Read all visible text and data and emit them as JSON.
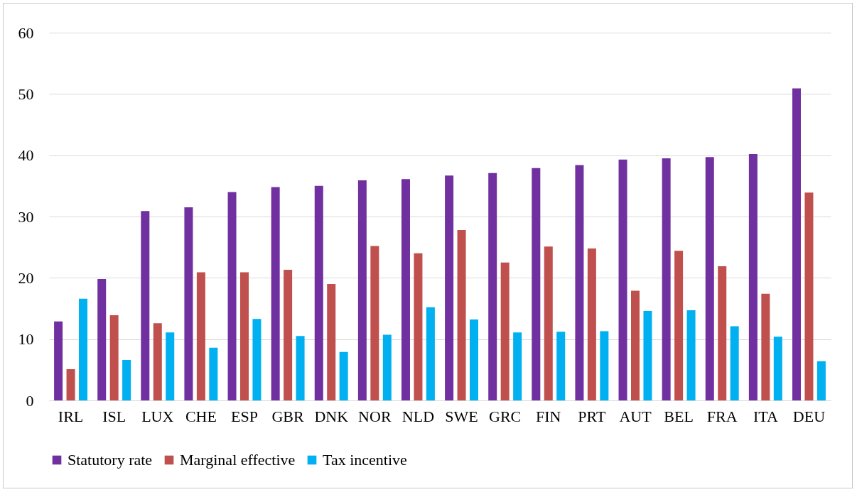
{
  "chart_data": {
    "type": "bar",
    "categories": [
      "IRL",
      "ISL",
      "LUX",
      "CHE",
      "ESP",
      "GBR",
      "DNK",
      "NOR",
      "NLD",
      "SWE",
      "GRC",
      "FIN",
      "PRT",
      "AUT",
      "BEL",
      "FRA",
      "ITA",
      "DEU"
    ],
    "series": [
      {
        "name": "Statutory rate",
        "color": "#7030a0",
        "values": [
          12.9,
          19.8,
          30.9,
          31.5,
          34.0,
          34.8,
          35.0,
          35.9,
          36.1,
          36.7,
          37.1,
          37.9,
          38.4,
          39.3,
          39.5,
          39.7,
          40.2,
          50.9
        ]
      },
      {
        "name": "Marginal effective",
        "color": "#c0504d",
        "values": [
          5.1,
          13.9,
          12.6,
          20.9,
          20.9,
          21.3,
          19.0,
          25.2,
          24.0,
          27.8,
          22.5,
          25.1,
          24.8,
          17.9,
          24.4,
          21.9,
          17.4,
          33.9
        ]
      },
      {
        "name": "Tax incentive",
        "color": "#00b0f0",
        "values": [
          16.6,
          6.6,
          11.1,
          8.6,
          13.3,
          10.5,
          7.9,
          10.7,
          15.2,
          13.2,
          11.1,
          11.2,
          11.3,
          14.6,
          14.7,
          12.1,
          10.4,
          6.4
        ]
      }
    ],
    "ylim": [
      0,
      60
    ],
    "yticks": [
      0,
      10,
      20,
      30,
      40,
      50,
      60
    ],
    "grid": "y",
    "legend": "bottom"
  }
}
